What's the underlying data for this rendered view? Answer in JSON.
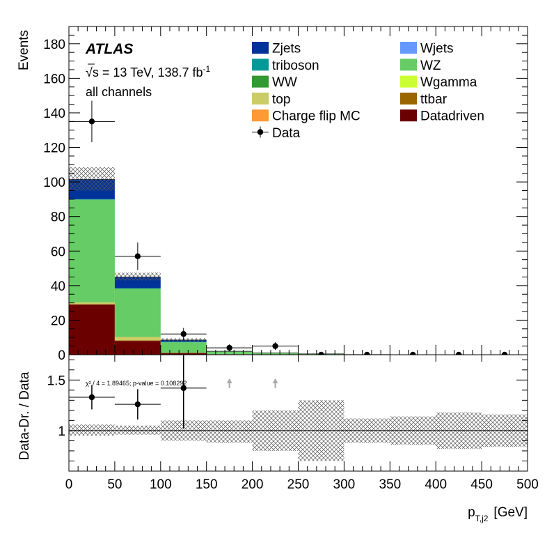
{
  "chart_data": {
    "type": "bar",
    "stacked": true,
    "experiment": "ATLAS",
    "energy_text": "√s = 13 TeV, 138.7 fb",
    "lumi_exponent": "-1",
    "channel_text": "all channels",
    "bin_edges": [
      0,
      50,
      100,
      150,
      200,
      250,
      300,
      350,
      400,
      450,
      500
    ],
    "xlabel": "p",
    "xlabel_sub": "T,j2",
    "xlabel_unit": "[GeV]",
    "ylabel": "Events",
    "ylim": [
      0,
      190
    ],
    "y_ticks": [
      0,
      20,
      40,
      60,
      80,
      100,
      120,
      140,
      160,
      180
    ],
    "x_ticks": [
      0,
      50,
      100,
      150,
      200,
      250,
      300,
      350,
      400,
      450,
      500
    ],
    "series": [
      {
        "name": "Datadriven",
        "color": "#6b0000",
        "values": [
          29,
          8,
          1,
          0.3,
          0.2,
          0,
          0,
          0,
          0,
          0
        ]
      },
      {
        "name": "Charge flip MC",
        "color": "#ff9933",
        "values": [
          0,
          0,
          0,
          0,
          0,
          0,
          0,
          0,
          0,
          0
        ]
      },
      {
        "name": "ttbar",
        "color": "#996600",
        "values": [
          0.3,
          0.3,
          0,
          0,
          0,
          0,
          0,
          0,
          0,
          0
        ]
      },
      {
        "name": "top",
        "color": "#cccc66",
        "values": [
          1,
          2,
          0.2,
          0,
          0,
          0,
          0,
          0,
          0,
          0
        ]
      },
      {
        "name": "Wgamma",
        "color": "#ccff33",
        "values": [
          0,
          0,
          0,
          0,
          0,
          0,
          0,
          0,
          0,
          0
        ]
      },
      {
        "name": "WW",
        "color": "#339933",
        "values": [
          0,
          0,
          0,
          0,
          0,
          0,
          0,
          0,
          0,
          0
        ]
      },
      {
        "name": "WZ",
        "color": "#66cc66",
        "values": [
          59.5,
          28,
          6,
          1.5,
          0.8,
          0.4,
          0.1,
          0,
          0,
          0
        ]
      },
      {
        "name": "triboson",
        "color": "#009999",
        "values": [
          0.2,
          0.2,
          0.3,
          0.1,
          0.1,
          0.1,
          0,
          0,
          0,
          0
        ]
      },
      {
        "name": "Wjets",
        "color": "#6699ff",
        "values": [
          0,
          0,
          0,
          0,
          0,
          0,
          0,
          0,
          0,
          0
        ]
      },
      {
        "name": "Zjets",
        "color": "#003399",
        "values": [
          11.5,
          6.5,
          1,
          0.1,
          0,
          0,
          0,
          0,
          0,
          0
        ]
      }
    ],
    "uncertainty_band": {
      "up": [
        108.5,
        47.5,
        9.5,
        2,
        1.2,
        0.6,
        0.2,
        0.05,
        0.02,
        0.02
      ],
      "down": [
        95,
        43,
        7.5,
        1.6,
        0.8,
        0.4,
        0.1,
        0,
        0,
        0
      ]
    },
    "data": {
      "name": "Data",
      "values": [
        135,
        57,
        12,
        4,
        5,
        0,
        0,
        0,
        0,
        0
      ],
      "errors": [
        12,
        8,
        3.5,
        2,
        2.2,
        0,
        0,
        0,
        0,
        0
      ]
    },
    "legend_order": [
      "Zjets",
      "Wjets",
      "triboson",
      "WZ",
      "WW",
      "Wgamma",
      "top",
      "ttbar",
      "Charge flip MC",
      "Datadriven",
      "Data"
    ],
    "ratio": {
      "ylabel": "Data-Dr. / Data",
      "ylim": [
        0.6,
        1.75
      ],
      "y_ticks": [
        1,
        1.5
      ],
      "reference": 1,
      "stats_text": "χ² / 4 = 1.89465; p-value = 0.108292",
      "points": [
        {
          "x": 25,
          "y": 1.33,
          "err": 0.12
        },
        {
          "x": 75,
          "y": 1.26,
          "err": 0.15
        },
        {
          "x": 125,
          "y": 1.42,
          "err": 0.4
        }
      ],
      "offscale_arrows_x": [
        175,
        225
      ],
      "band_up": [
        1.06,
        1.05,
        1.1,
        1.1,
        1.2,
        1.3,
        1.12,
        1.14,
        1.18,
        1.16
      ],
      "band_down": [
        0.95,
        0.96,
        0.9,
        0.88,
        0.8,
        0.7,
        0.88,
        0.86,
        0.82,
        0.84
      ]
    }
  }
}
